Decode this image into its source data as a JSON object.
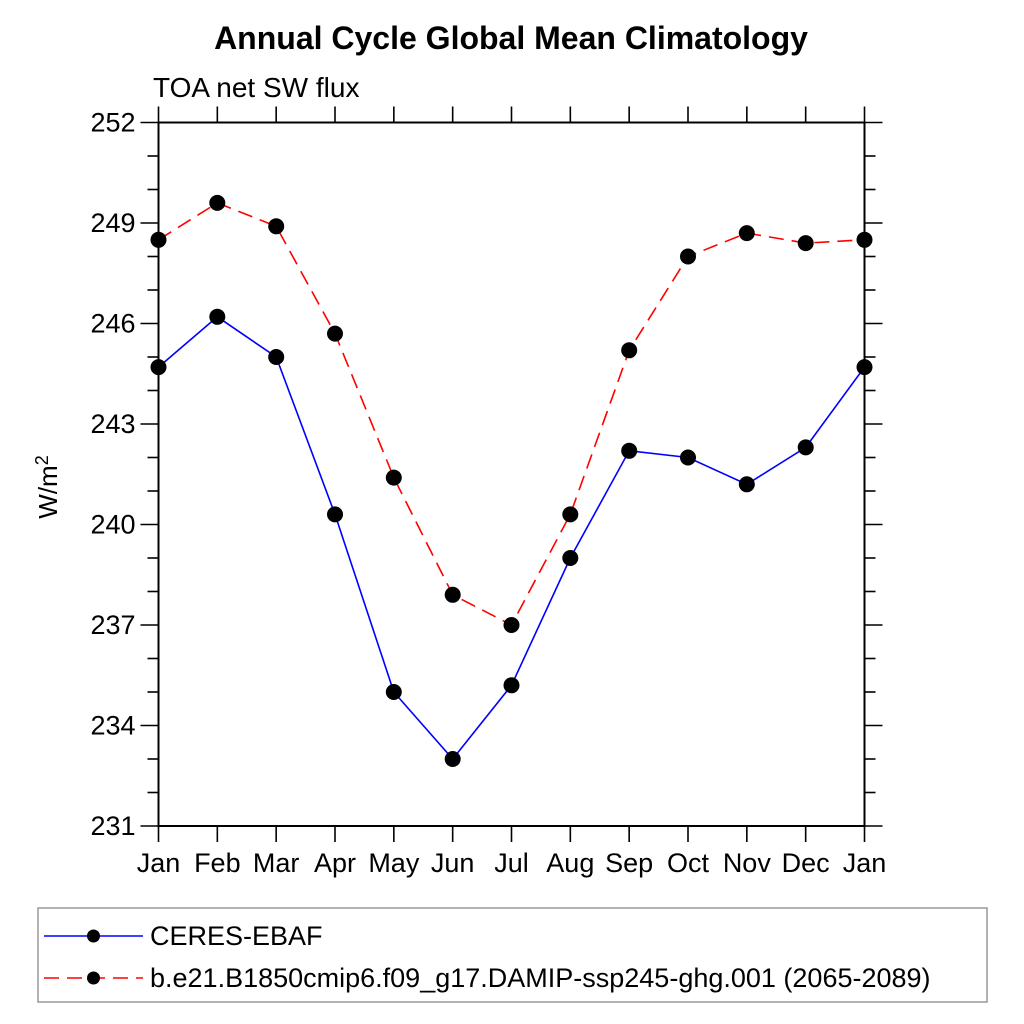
{
  "chart_data": {
    "type": "line",
    "title": "Annual Cycle Global Mean Climatology",
    "subtitle": "TOA net SW flux",
    "ylabel_base": "W/m",
    "ylabel_exponent": "2",
    "categories": [
      "Jan",
      "Feb",
      "Mar",
      "Apr",
      "May",
      "Jun",
      "Jul",
      "Aug",
      "Sep",
      "Oct",
      "Nov",
      "Dec",
      "Jan"
    ],
    "ylim": [
      231,
      252
    ],
    "ytick_step_major": 3,
    "ytick_step_minor": 1,
    "ytick_labels": [
      "231",
      "234",
      "237",
      "240",
      "243",
      "246",
      "249",
      "252"
    ],
    "grid": false,
    "legend_position": "bottom",
    "background_color": "#ffffff",
    "frame_color": "#000000",
    "legend_border_color": "#999999",
    "marker_color": "#000000",
    "series": [
      {
        "name": "CERES-EBAF",
        "color": "#0000ff",
        "line_style": "solid",
        "marker": "dot",
        "values": [
          244.7,
          246.2,
          245.0,
          240.3,
          235.0,
          233.0,
          235.2,
          239.0,
          242.2,
          242.0,
          241.2,
          242.3,
          244.7
        ]
      },
      {
        "name": "b.e21.B1850cmip6.f09_g17.DAMIP-ssp245-ghg.001 (2065-2089)",
        "color": "#ff0000",
        "line_style": "dashed",
        "marker": "dot",
        "values": [
          248.5,
          249.6,
          248.9,
          245.7,
          241.4,
          237.9,
          237.0,
          240.3,
          245.2,
          248.0,
          248.7,
          248.4,
          248.5
        ]
      }
    ]
  }
}
